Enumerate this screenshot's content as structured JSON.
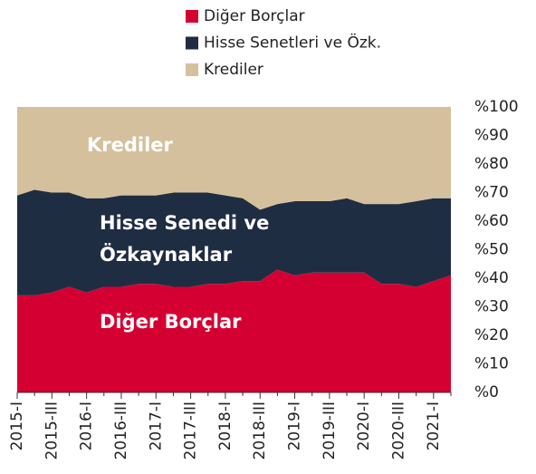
{
  "chart_data": {
    "type": "stacked_area",
    "categories": [
      "2015-I",
      null,
      "2015-III",
      null,
      "2016-I",
      null,
      "2016-III",
      null,
      "2017-I",
      null,
      "2017-III",
      null,
      "2018-I",
      null,
      "2018-III",
      null,
      "2019-I",
      null,
      "2019-III",
      null,
      "2020-I",
      null,
      "2020-III",
      null,
      "2021-I",
      null
    ],
    "series": [
      {
        "name": "Diğer Borçlar",
        "color": "#d50032",
        "values": [
          34,
          34,
          35,
          37,
          35,
          37,
          37,
          38,
          38,
          37,
          37,
          38,
          38,
          39,
          39,
          43,
          41,
          42,
          42,
          42,
          42,
          38,
          38,
          37,
          39,
          41
        ]
      },
      {
        "name": "Hisse Senetleri ve Özk.",
        "color": "#1f2d42",
        "values": [
          35,
          37,
          35,
          33,
          33,
          31,
          32,
          31,
          31,
          33,
          33,
          32,
          31,
          29,
          25,
          23,
          26,
          25,
          25,
          26,
          24,
          28,
          28,
          30,
          29,
          27
        ]
      },
      {
        "name": "Krediler",
        "color": "#d4c09c",
        "values": [
          31,
          29,
          30,
          30,
          32,
          32,
          31,
          31,
          31,
          30,
          30,
          30,
          31,
          32,
          36,
          34,
          33,
          33,
          33,
          32,
          34,
          34,
          34,
          33,
          32,
          32
        ]
      }
    ],
    "annotations": [
      "Krediler",
      "Hisse Senedi ve",
      "Özkaynaklar",
      "Diğer Borçlar"
    ],
    "ylim": [
      0,
      100
    ],
    "yticks": [
      {
        "value": 0,
        "label": "%0"
      },
      {
        "value": 10,
        "label": "%10"
      },
      {
        "value": 20,
        "label": "%20"
      },
      {
        "value": 30,
        "label": "%30"
      },
      {
        "value": 40,
        "label": "%40"
      },
      {
        "value": 50,
        "label": "%50"
      },
      {
        "value": 60,
        "label": "%60"
      },
      {
        "value": 70,
        "label": "%70"
      },
      {
        "value": 80,
        "label": "%80"
      },
      {
        "value": 90,
        "label": "%90"
      },
      {
        "value": 100,
        "label": "%100"
      }
    ],
    "grid": false,
    "legend": "top"
  }
}
